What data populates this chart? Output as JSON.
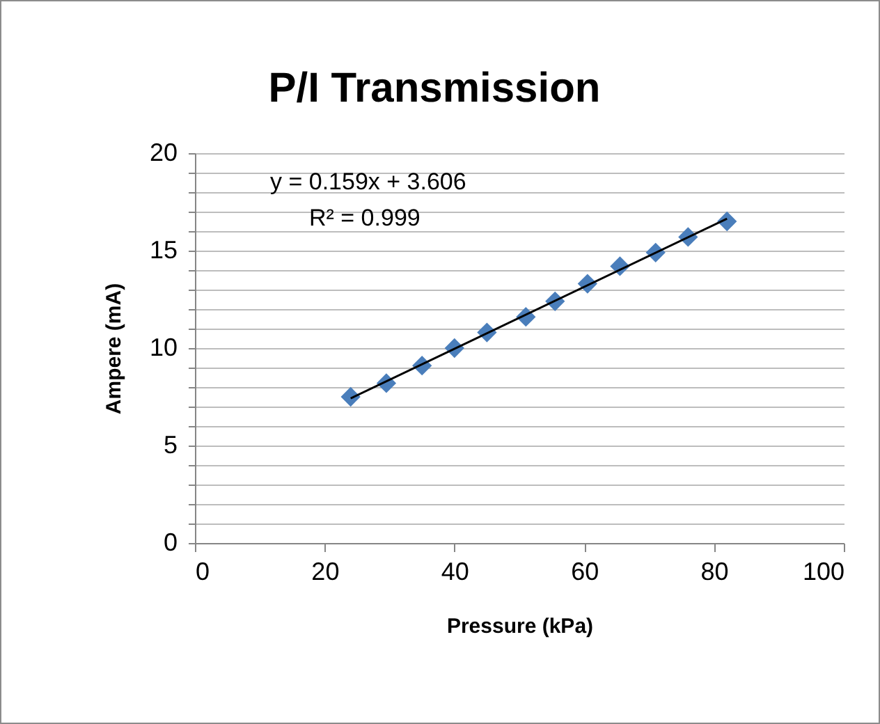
{
  "chart_data": {
    "type": "scatter",
    "title": "P/I Transmission",
    "xlabel": "Pressure (kPa)",
    "ylabel": "Ampere (mA)",
    "annotations": [
      "y = 0.159x + 3.606",
      "R² = 0.999"
    ],
    "series": [
      {
        "color": "#4a7ebb",
        "marker": "diamond",
        "x": [
          24,
          29.5,
          35,
          40,
          45,
          51,
          55.5,
          60.5,
          65.5,
          71,
          76,
          82
        ],
        "values": [
          7.5,
          8.2,
          9.1,
          10.0,
          10.8,
          11.6,
          12.4,
          13.3,
          14.2,
          14.9,
          15.7,
          16.5
        ]
      },
      {
        "type": "line",
        "color": "#000000",
        "x": [
          24,
          82
        ],
        "values": [
          7.42,
          16.64
        ]
      }
    ],
    "xlim": [
      0,
      100
    ],
    "xticks": [
      0,
      20,
      40,
      60,
      80,
      100
    ],
    "ylim": [
      0,
      20
    ],
    "yticks": [
      0,
      {
        "value": 1,
        "label": null
      },
      {
        "value": 2,
        "label": null
      },
      {
        "value": 3,
        "label": null
      },
      {
        "value": 4,
        "label": null
      },
      5,
      {
        "value": 6,
        "label": null
      },
      {
        "value": 7,
        "label": null
      },
      {
        "value": 8,
        "label": null
      },
      {
        "value": 9,
        "label": null
      },
      10,
      {
        "value": 11,
        "label": null
      },
      {
        "value": 12,
        "label": null
      },
      {
        "value": 13,
        "label": null
      },
      {
        "value": 14,
        "label": null
      },
      15,
      {
        "value": 16,
        "label": null
      },
      {
        "value": 17,
        "label": null
      },
      {
        "value": 18,
        "label": null
      },
      {
        "value": 19,
        "label": null
      },
      20
    ],
    "grid": "y"
  }
}
